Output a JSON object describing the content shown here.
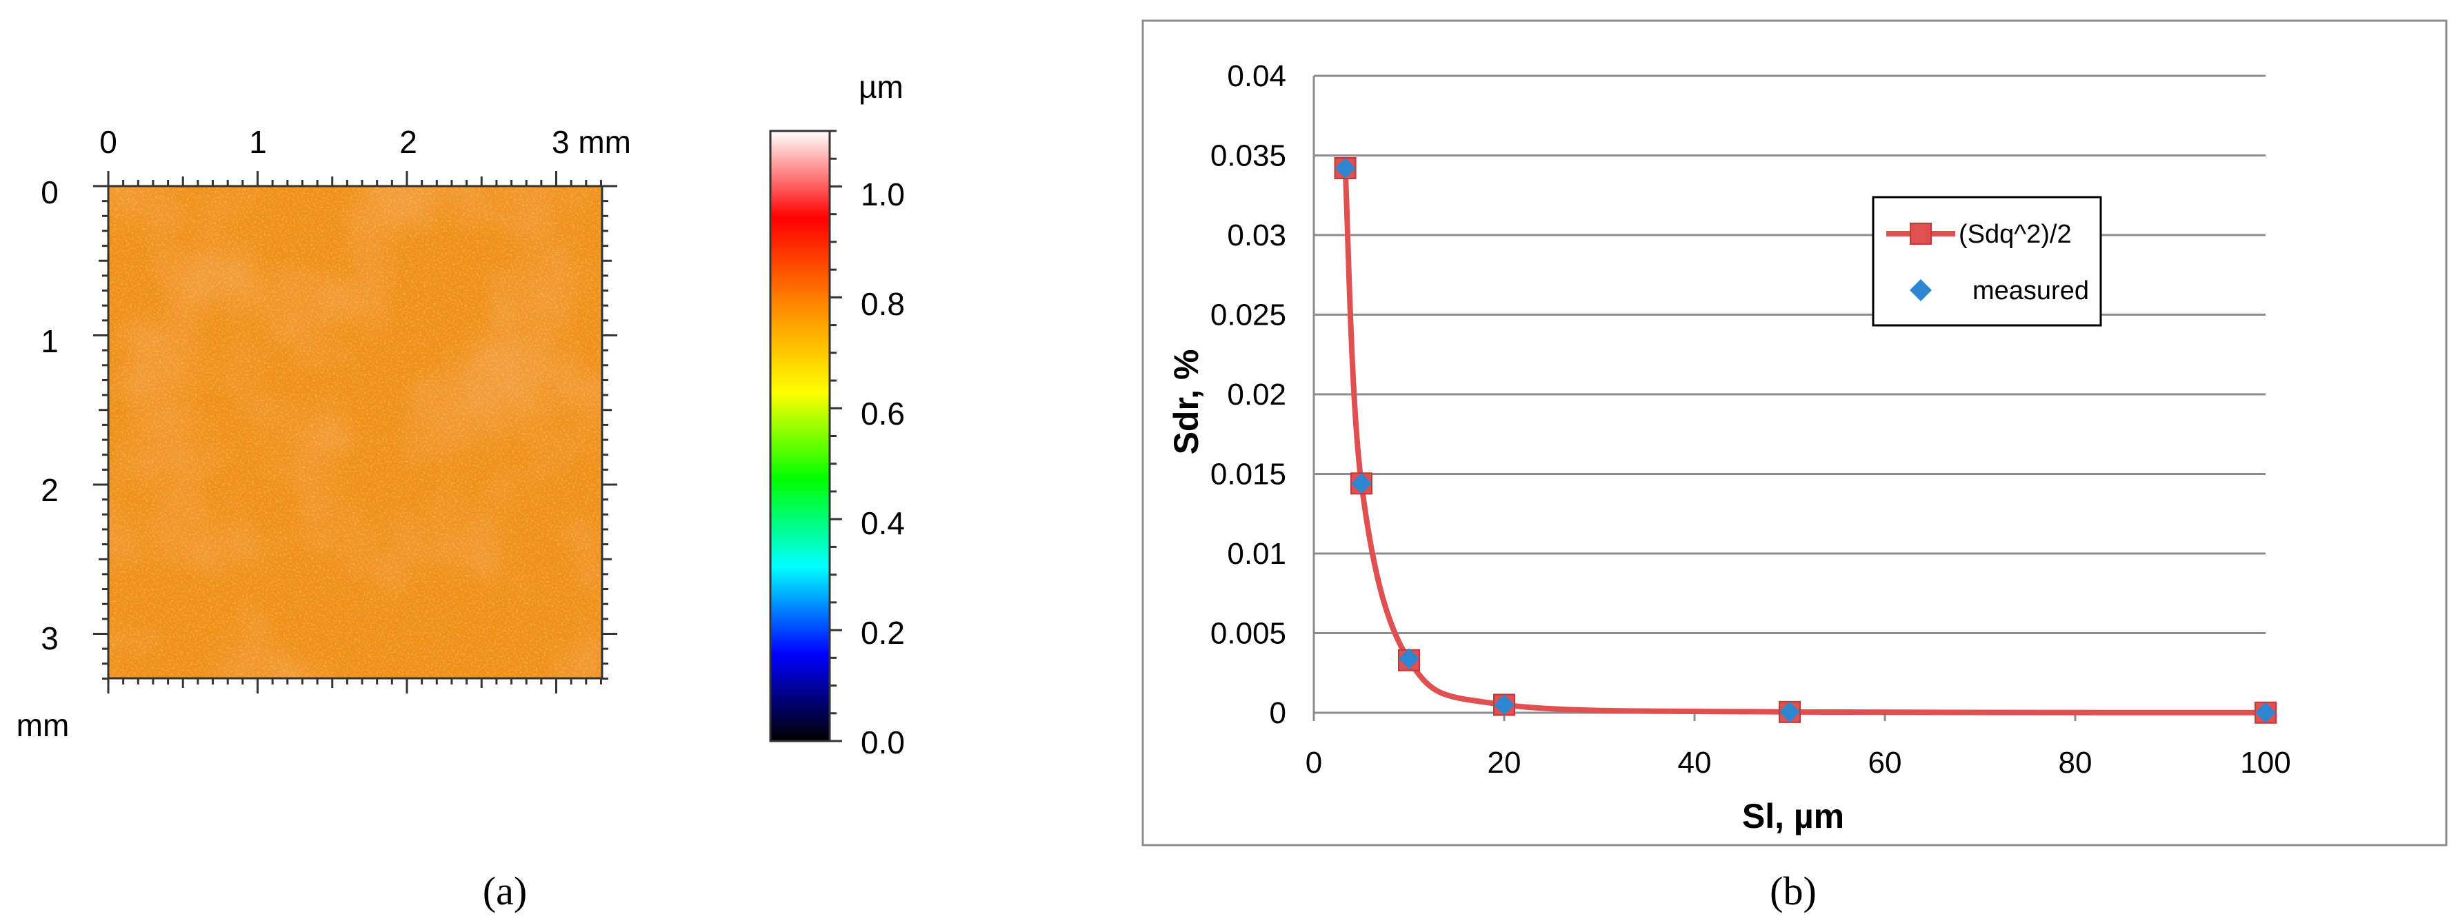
{
  "panel_a": {
    "caption": "(a)",
    "x_ticks": [
      "0",
      "1",
      "2",
      "3 mm"
    ],
    "y_ticks": [
      "0",
      "1",
      "2",
      "3"
    ],
    "y_unit": "mm",
    "colorbar_unit": "µm",
    "colorbar_ticks": [
      "1.0",
      "0.8",
      "0.6",
      "0.4",
      "0.2",
      "0.0"
    ],
    "colormap_stops": [
      "#000000",
      "#0000ff",
      "#00ffff",
      "#00ff00",
      "#ffff00",
      "#ff8800",
      "#ff0000",
      "#ffffff"
    ],
    "map_colors": {
      "base": "#f0901a",
      "dark": "#e8641c",
      "light": "#f6b43c"
    }
  },
  "panel_b": {
    "caption": "(b)"
  },
  "chart_data": {
    "type": "line",
    "xlabel": "Sl, µm",
    "ylabel": "Sdr, %",
    "xlim": [
      0,
      100
    ],
    "ylim": [
      0,
      0.04
    ],
    "x_ticks": [
      "0",
      "20",
      "40",
      "60",
      "80",
      "100"
    ],
    "y_ticks": [
      "0",
      "0.005",
      "0.01",
      "0.015",
      "0.02",
      "0.025",
      "0.03",
      "0.035",
      "0.04"
    ],
    "grid": true,
    "legend_position": "top-right",
    "series": [
      {
        "name": "(Sdq^2)/2",
        "kind": "line-square",
        "color": "#e05050",
        "x": [
          3.3,
          5,
          10,
          20,
          50,
          100
        ],
        "y": [
          0.0342,
          0.0144,
          0.0033,
          0.0005,
          5e-05,
          1e-05
        ]
      },
      {
        "name": "measured",
        "kind": "diamond",
        "color": "#2e86d0",
        "x": [
          3.3,
          5,
          10,
          20,
          50,
          100
        ],
        "y": [
          0.0342,
          0.0144,
          0.0034,
          0.0005,
          5e-05,
          1e-05
        ]
      }
    ]
  }
}
